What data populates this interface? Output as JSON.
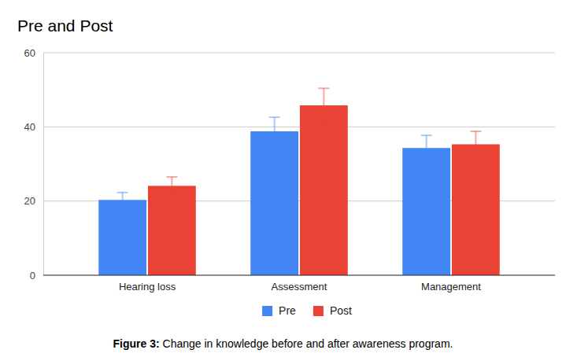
{
  "chart_data": {
    "type": "bar",
    "title": "Pre and Post",
    "categories": [
      "Hearing loss",
      "Assessment",
      "Management"
    ],
    "series": [
      {
        "name": "Pre",
        "color": "#4285f4",
        "values": [
          20.3,
          38.8,
          34.3
        ],
        "errors": [
          2.0,
          3.8,
          3.4
        ]
      },
      {
        "name": "Post",
        "color": "#ea4335",
        "values": [
          24.1,
          45.8,
          35.3
        ],
        "errors": [
          2.4,
          4.6,
          3.5
        ]
      }
    ],
    "ylim": [
      0,
      60
    ],
    "yticks": [
      0,
      20,
      40,
      60
    ],
    "grid": true,
    "legend": "bottom",
    "figure_label": "Figure 3:",
    "caption": "Change in knowledge before and after awareness program."
  }
}
